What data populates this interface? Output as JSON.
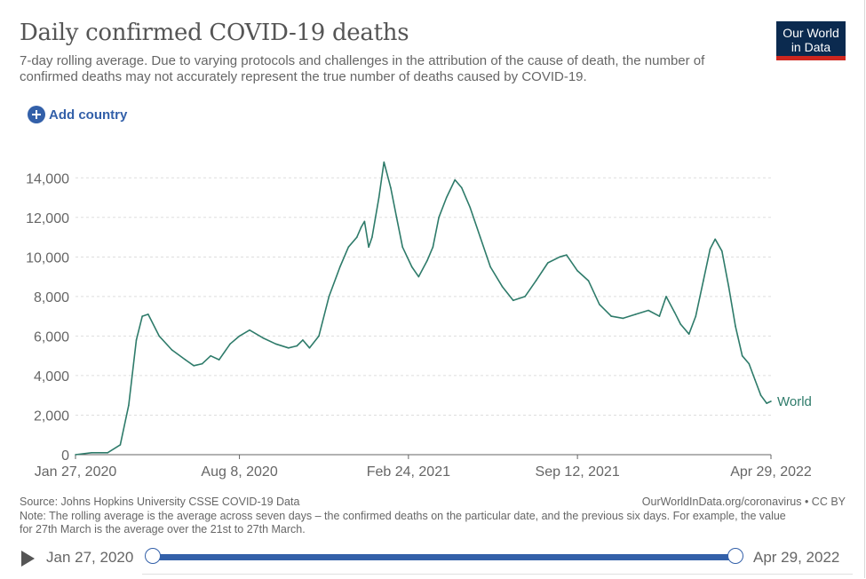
{
  "header": {
    "title": "Daily confirmed COVID-19 deaths",
    "subtitle": "7-day rolling average. Due to varying protocols and challenges in the attribution of the cause of death, the number of confirmed deaths may not accurately represent the true number of deaths caused by COVID-19.",
    "logo_line1": "Our World",
    "logo_line2": "in Data"
  },
  "controls": {
    "add_country_label": "Add country"
  },
  "colors": {
    "series": "#2e7b6a",
    "accent": "#3360a9",
    "logo_bg": "#0b2a4f",
    "logo_bar": "#ce261e"
  },
  "chart_data": {
    "type": "line",
    "title": "Daily confirmed COVID-19 deaths",
    "ylim": [
      0,
      15000
    ],
    "y_ticks": [
      0,
      2000,
      4000,
      6000,
      8000,
      10000,
      12000,
      14000
    ],
    "y_tick_labels": [
      "0",
      "2,000",
      "4,000",
      "6,000",
      "8,000",
      "10,000",
      "12,000",
      "14,000"
    ],
    "x_tick_labels": [
      {
        "date": "2020-01-27",
        "label": "Jan 27, 2020"
      },
      {
        "date": "2020-08-08",
        "label": "Aug 8, 2020"
      },
      {
        "date": "2021-02-24",
        "label": "Feb 24, 2021"
      },
      {
        "date": "2021-09-12",
        "label": "Sep 12, 2021"
      },
      {
        "date": "2022-04-29",
        "label": "Apr 29, 2022"
      }
    ],
    "grid": true,
    "series": [
      {
        "name": "World",
        "points": [
          [
            "2020-01-27",
            0
          ],
          [
            "2020-02-15",
            100
          ],
          [
            "2020-03-05",
            100
          ],
          [
            "2020-03-20",
            500
          ],
          [
            "2020-03-30",
            2500
          ],
          [
            "2020-04-08",
            5800
          ],
          [
            "2020-04-15",
            7000
          ],
          [
            "2020-04-22",
            7100
          ],
          [
            "2020-05-05",
            6000
          ],
          [
            "2020-05-20",
            5300
          ],
          [
            "2020-06-05",
            4800
          ],
          [
            "2020-06-15",
            4500
          ],
          [
            "2020-06-25",
            4600
          ],
          [
            "2020-07-05",
            5000
          ],
          [
            "2020-07-15",
            4800
          ],
          [
            "2020-07-28",
            5600
          ],
          [
            "2020-08-08",
            6000
          ],
          [
            "2020-08-20",
            6300
          ],
          [
            "2020-09-05",
            5900
          ],
          [
            "2020-09-20",
            5600
          ],
          [
            "2020-10-05",
            5400
          ],
          [
            "2020-10-15",
            5500
          ],
          [
            "2020-10-22",
            5800
          ],
          [
            "2020-10-30",
            5400
          ],
          [
            "2020-11-10",
            6000
          ],
          [
            "2020-11-22",
            8000
          ],
          [
            "2020-12-05",
            9500
          ],
          [
            "2020-12-15",
            10500
          ],
          [
            "2020-12-25",
            11000
          ],
          [
            "2020-12-30",
            11500
          ],
          [
            "2021-01-03",
            11800
          ],
          [
            "2021-01-08",
            10500
          ],
          [
            "2021-01-12",
            11000
          ],
          [
            "2021-01-20",
            13000
          ],
          [
            "2021-01-26",
            14800
          ],
          [
            "2021-02-03",
            13500
          ],
          [
            "2021-02-10",
            12000
          ],
          [
            "2021-02-17",
            10500
          ],
          [
            "2021-02-28",
            9500
          ],
          [
            "2021-03-08",
            9000
          ],
          [
            "2021-03-18",
            9800
          ],
          [
            "2021-03-25",
            10500
          ],
          [
            "2021-04-01",
            12000
          ],
          [
            "2021-04-10",
            13000
          ],
          [
            "2021-04-20",
            13900
          ],
          [
            "2021-04-28",
            13500
          ],
          [
            "2021-05-08",
            12500
          ],
          [
            "2021-05-20",
            11000
          ],
          [
            "2021-06-01",
            9500
          ],
          [
            "2021-06-15",
            8500
          ],
          [
            "2021-06-28",
            7800
          ],
          [
            "2021-07-12",
            8000
          ],
          [
            "2021-07-25",
            8800
          ],
          [
            "2021-08-08",
            9700
          ],
          [
            "2021-08-22",
            10000
          ],
          [
            "2021-08-30",
            10100
          ],
          [
            "2021-09-12",
            9300
          ],
          [
            "2021-09-25",
            8800
          ],
          [
            "2021-10-08",
            7600
          ],
          [
            "2021-10-22",
            7000
          ],
          [
            "2021-11-05",
            6900
          ],
          [
            "2021-11-20",
            7100
          ],
          [
            "2021-12-05",
            7300
          ],
          [
            "2021-12-18",
            7000
          ],
          [
            "2021-12-26",
            8000
          ],
          [
            "2022-01-05",
            7200
          ],
          [
            "2022-01-12",
            6600
          ],
          [
            "2022-01-22",
            6100
          ],
          [
            "2022-01-30",
            7000
          ],
          [
            "2022-02-08",
            8800
          ],
          [
            "2022-02-16",
            10400
          ],
          [
            "2022-02-22",
            10900
          ],
          [
            "2022-03-02",
            10300
          ],
          [
            "2022-03-10",
            8500
          ],
          [
            "2022-03-18",
            6500
          ],
          [
            "2022-03-26",
            5000
          ],
          [
            "2022-04-03",
            4600
          ],
          [
            "2022-04-10",
            3800
          ],
          [
            "2022-04-17",
            3000
          ],
          [
            "2022-04-24",
            2600
          ],
          [
            "2022-04-29",
            2700
          ]
        ]
      }
    ]
  },
  "footer": {
    "source": "Source: Johns Hopkins University CSSE COVID-19 Data",
    "credit": "OurWorldInData.org/coronavirus • CC BY",
    "note": "Note: The rolling average is the average across seven days – the confirmed deaths on the particular date, and the previous six days. For example, the value for 27th March is the average over the 21st to 27th March."
  },
  "timeline": {
    "start_label": "Jan 27, 2020",
    "end_label": "Apr 29, 2022",
    "range_fraction_start": 0,
    "range_fraction_end": 1
  }
}
